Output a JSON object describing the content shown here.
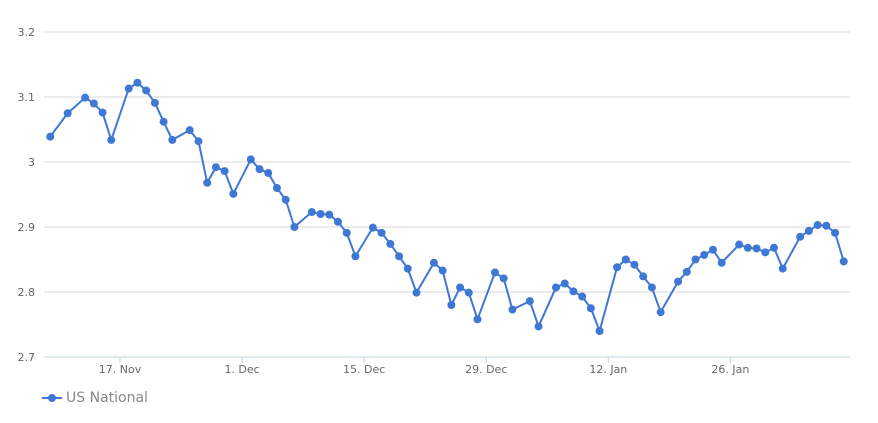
{
  "chart_data": {
    "type": "line",
    "title": "",
    "xlabel": "",
    "ylabel": "",
    "ylim": [
      2.7,
      3.2
    ],
    "yticks": [
      "2.7",
      "2.8",
      "2.9",
      "3",
      "3.1",
      "3.2"
    ],
    "xticks": [
      "17. Nov",
      "1. Dec",
      "15. Dec",
      "29. Dec",
      "12. Jan",
      "26. Jan"
    ],
    "grid": true,
    "legend_position": "bottom-left",
    "series": [
      {
        "name": "US National",
        "color": "#3f78d4",
        "x": [
          "11-09",
          "11-11",
          "11-13",
          "11-14",
          "11-15",
          "11-16",
          "11-18",
          "11-19",
          "11-20",
          "11-21",
          "11-22",
          "11-23",
          "11-25",
          "11-26",
          "11-27",
          "11-28",
          "11-29",
          "11-30",
          "12-02",
          "12-03",
          "12-04",
          "12-05",
          "12-06",
          "12-07",
          "12-09",
          "12-10",
          "12-11",
          "12-12",
          "12-13",
          "12-14",
          "12-16",
          "12-17",
          "12-18",
          "12-19",
          "12-20",
          "12-21",
          "12-23",
          "12-24",
          "12-25",
          "12-26",
          "12-27",
          "12-28",
          "12-30",
          "12-31",
          "01-01",
          "01-03",
          "01-04",
          "01-06",
          "01-07",
          "01-08",
          "01-09",
          "01-10",
          "01-11",
          "01-13",
          "01-14",
          "01-15",
          "01-16",
          "01-17",
          "01-18",
          "01-20",
          "01-21",
          "01-22",
          "01-23",
          "01-24",
          "01-25",
          "01-27",
          "01-28",
          "01-29",
          "01-30",
          "01-31",
          "02-01",
          "02-03",
          "02-04",
          "02-05",
          "02-06",
          "02-07",
          "02-08"
        ],
        "values": [
          3.039,
          3.075,
          3.099,
          3.09,
          3.076,
          3.034,
          3.113,
          3.122,
          3.11,
          3.091,
          3.062,
          3.034,
          3.049,
          3.032,
          2.968,
          2.992,
          2.986,
          2.951,
          3.004,
          2.989,
          2.983,
          2.96,
          2.942,
          2.9,
          2.923,
          2.92,
          2.919,
          2.908,
          2.891,
          2.855,
          2.899,
          2.891,
          2.874,
          2.855,
          2.836,
          2.799,
          2.845,
          2.833,
          2.78,
          2.807,
          2.799,
          2.758,
          2.83,
          2.821,
          2.773,
          2.786,
          2.747,
          2.807,
          2.813,
          2.801,
          2.793,
          2.775,
          2.74,
          2.838,
          2.85,
          2.842,
          2.824,
          2.807,
          2.769,
          2.816,
          2.831,
          2.85,
          2.857,
          2.865,
          2.845,
          2.873,
          2.868,
          2.867,
          2.861,
          2.868,
          2.836,
          2.885,
          2.894,
          2.903,
          2.902,
          2.891,
          2.847
        ]
      }
    ]
  }
}
